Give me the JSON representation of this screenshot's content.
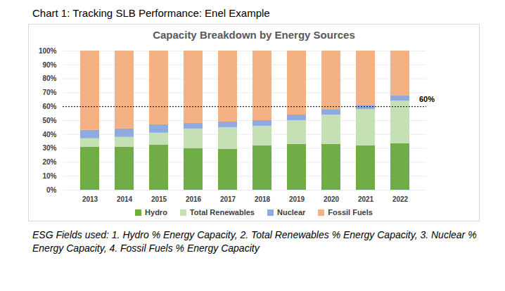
{
  "chart_data": {
    "type": "bar",
    "figure_label": "Chart 1: Tracking SLB Performance: Enel Example",
    "title": "Capacity Breakdown by Energy Sources",
    "caption": "ESG Fields used: 1. Hydro % Energy Capacity, 2. Total Renewables % Energy Capacity, 3. Nuclear % Energy Capacity, 4. Fossil Fuels % Energy Capacity",
    "categories": [
      "2013",
      "2014",
      "2015",
      "2016",
      "2017",
      "2018",
      "2019",
      "2020",
      "2021",
      "2022"
    ],
    "series": [
      {
        "name": "Hydro",
        "color": "#70ad47",
        "values": [
          31,
          31,
          32.5,
          30,
          29.5,
          32,
          33,
          33,
          32,
          33.5
        ]
      },
      {
        "name": "Total Renewables",
        "color": "#c5e0b4",
        "values": [
          6,
          7,
          8.5,
          14,
          15.5,
          14,
          17,
          21,
          26,
          30.5
        ]
      },
      {
        "name": "Nuclear",
        "color": "#8faadc",
        "values": [
          6,
          6,
          6,
          4,
          4,
          4,
          4,
          4,
          3,
          4
        ]
      },
      {
        "name": "Fossil Fuels",
        "color": "#f4b183",
        "values": [
          57,
          56,
          53,
          52,
          51,
          50,
          46,
          42,
          39,
          32
        ]
      }
    ],
    "stacked": true,
    "ylim": [
      0,
      100
    ],
    "yticks": [
      {
        "value": 0,
        "label": "0%"
      },
      {
        "value": 10,
        "label": "10%"
      },
      {
        "value": 20,
        "label": "20%"
      },
      {
        "value": 30,
        "label": "30%"
      },
      {
        "value": 40,
        "label": "40%"
      },
      {
        "value": 50,
        "label": "50%"
      },
      {
        "value": 60,
        "label": "60%"
      },
      {
        "value": 70,
        "label": "70%"
      },
      {
        "value": 80,
        "label": "80%"
      },
      {
        "value": 90,
        "label": "90%"
      },
      {
        "value": 100,
        "label": "100%"
      }
    ],
    "grid": true,
    "legend": "bottom",
    "annotations": [
      {
        "y": 60,
        "text": "60%",
        "line_style": "dotted"
      }
    ]
  }
}
